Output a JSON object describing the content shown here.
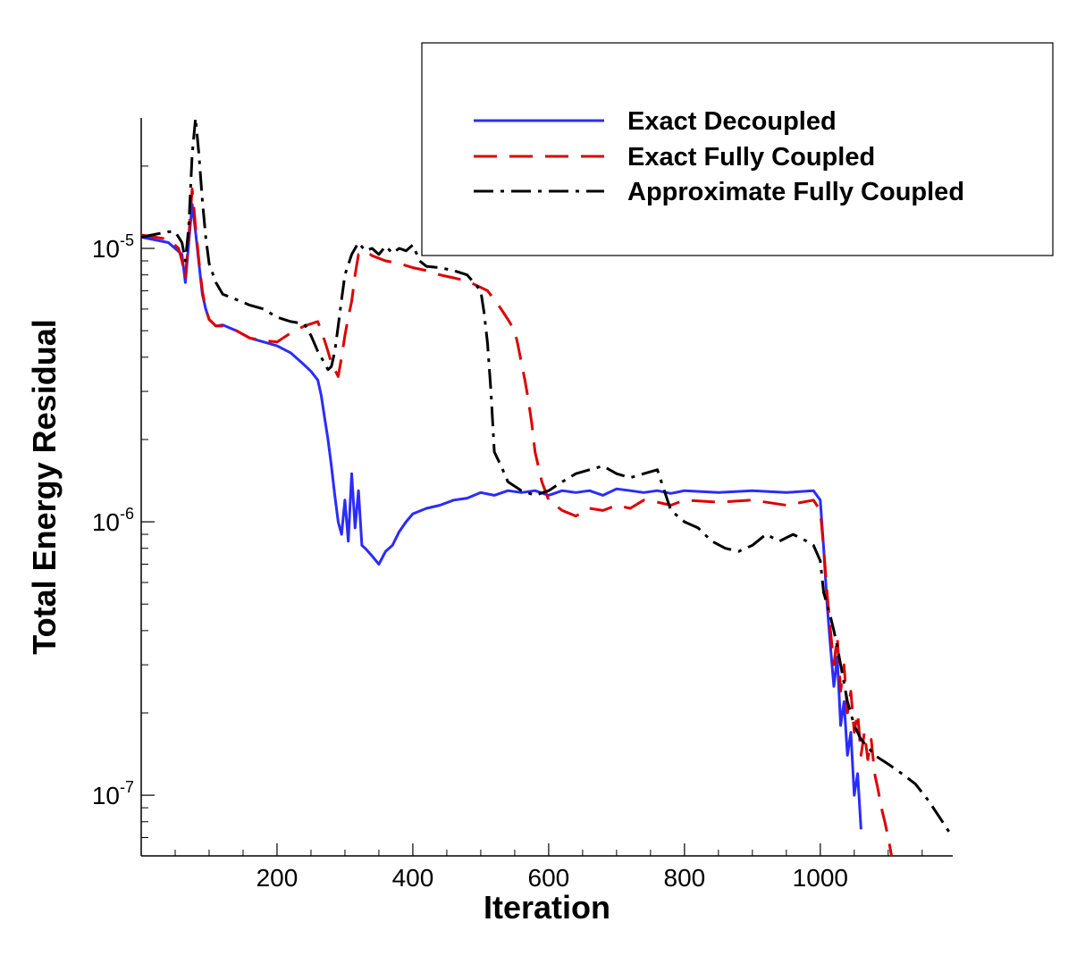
{
  "chart_data": {
    "type": "line",
    "xlabel": "Iteration",
    "ylabel": "Total Energy Residual",
    "xlim": [
      0,
      1195
    ],
    "ylim": [
      6e-08,
      3e-05
    ],
    "yscale": "log",
    "xticks": [
      200,
      400,
      600,
      800,
      1000
    ],
    "xtick_labels": [
      "200",
      "400",
      "600",
      "800",
      "1000"
    ],
    "yticks": [
      {
        "value": 1e-05,
        "base": "10",
        "exp": "-5"
      },
      {
        "value": 1e-06,
        "base": "10",
        "exp": "-6"
      },
      {
        "value": 1e-07,
        "base": "10",
        "exp": "-7"
      }
    ],
    "legend_position": "top-right",
    "series": [
      {
        "name": "Exact Decoupled",
        "color": "#2b2bff",
        "dash": "solid",
        "x": [
          0,
          40,
          60,
          65,
          70,
          75,
          80,
          85,
          90,
          95,
          100,
          110,
          120,
          140,
          160,
          180,
          200,
          220,
          240,
          250,
          260,
          265,
          270,
          275,
          280,
          285,
          290,
          295,
          300,
          305,
          310,
          315,
          320,
          325,
          330,
          340,
          350,
          360,
          370,
          380,
          390,
          400,
          420,
          440,
          460,
          480,
          500,
          520,
          540,
          560,
          580,
          600,
          620,
          640,
          660,
          680,
          700,
          720,
          740,
          760,
          780,
          800,
          850,
          900,
          950,
          990,
          1000,
          1005,
          1010,
          1015,
          1020,
          1025,
          1030,
          1035,
          1040,
          1045,
          1050,
          1055,
          1060
        ],
        "y": [
          1.1e-05,
          1.05e-05,
          9.5e-06,
          7.5e-06,
          1.05e-05,
          1.45e-05,
          1.15e-05,
          8.8e-06,
          6.8e-06,
          6e-06,
          5.5e-06,
          5.2e-06,
          5.25e-06,
          5e-06,
          4.7e-06,
          4.55e-06,
          4.4e-06,
          4.15e-06,
          3.75e-06,
          3.55e-06,
          3.3e-06,
          2.9e-06,
          2.4e-06,
          2e-06,
          1.6e-06,
          1.25e-06,
          1e-06,
          9e-07,
          1.2e-06,
          8.5e-07,
          1.5e-06,
          9.5e-07,
          1.3e-06,
          8.2e-07,
          8e-07,
          7.5e-07,
          7e-07,
          7.8e-07,
          8.2e-07,
          9.2e-07,
          1e-06,
          1.07e-06,
          1.12e-06,
          1.15e-06,
          1.2e-06,
          1.22e-06,
          1.28e-06,
          1.25e-06,
          1.3e-06,
          1.28e-06,
          1.3e-06,
          1.25e-06,
          1.3e-06,
          1.28e-06,
          1.3e-06,
          1.25e-06,
          1.32e-06,
          1.3e-06,
          1.28e-06,
          1.3e-06,
          1.27e-06,
          1.3e-06,
          1.28e-06,
          1.3e-06,
          1.28e-06,
          1.3e-06,
          1.2e-06,
          8e-07,
          5e-07,
          3.5e-07,
          2.5e-07,
          3.2e-07,
          1.8e-07,
          2.2e-07,
          1.4e-07,
          1.7e-07,
          1e-07,
          1.2e-07,
          7.5e-08
        ]
      },
      {
        "name": "Exact Fully Coupled",
        "color": "#dd0000",
        "dash": "dashed",
        "x": [
          0,
          40,
          55,
          60,
          65,
          70,
          75,
          80,
          85,
          90,
          95,
          100,
          110,
          120,
          140,
          160,
          180,
          200,
          220,
          240,
          250,
          260,
          270,
          275,
          280,
          285,
          290,
          295,
          300,
          305,
          310,
          315,
          320,
          330,
          340,
          360,
          380,
          400,
          420,
          440,
          460,
          480,
          500,
          510,
          520,
          530,
          540,
          550,
          555,
          560,
          565,
          570,
          575,
          580,
          590,
          600,
          620,
          640,
          660,
          680,
          700,
          720,
          740,
          760,
          780,
          800,
          850,
          900,
          950,
          990,
          1000,
          1005,
          1010,
          1015,
          1020,
          1025,
          1030,
          1035,
          1040,
          1045,
          1050,
          1055,
          1060,
          1065,
          1070,
          1075,
          1080,
          1085,
          1090,
          1095,
          1100,
          1105
        ],
        "y": [
          1.12e-05,
          1.08e-05,
          1e-05,
          9e-06,
          7.8e-06,
          1.1e-05,
          1.65e-05,
          1.2e-05,
          9e-06,
          7e-06,
          6e-06,
          5.5e-06,
          5.2e-06,
          5.2e-06,
          5e-06,
          4.7e-06,
          4.6e-06,
          4.55e-06,
          4.9e-06,
          5.2e-06,
          5.3e-06,
          5.4e-06,
          4.6e-06,
          4.2e-06,
          3.8e-06,
          3.6e-06,
          3.4e-06,
          4e-06,
          4.8e-06,
          5.6e-06,
          6.4e-06,
          8e-06,
          9.5e-06,
          9.8e-06,
          9.4e-06,
          9e-06,
          8.8e-06,
          8.5e-06,
          8.3e-06,
          8e-06,
          7.8e-06,
          7.6e-06,
          7.2e-06,
          7e-06,
          6.5e-06,
          6e-06,
          5.5e-06,
          5e-06,
          4.4e-06,
          3.8e-06,
          3.3e-06,
          2.8e-06,
          2.3e-06,
          1.8e-06,
          1.4e-06,
          1.2e-06,
          1.1e-06,
          1.05e-06,
          1.12e-06,
          1.1e-06,
          1.15e-06,
          1.12e-06,
          1.2e-06,
          1.18e-06,
          1.15e-06,
          1.2e-06,
          1.18e-06,
          1.2e-06,
          1.15e-06,
          1.2e-06,
          1.1e-06,
          8e-07,
          5.5e-07,
          4e-07,
          3e-07,
          3.8e-07,
          2.4e-07,
          3e-07,
          2e-07,
          2.4e-07,
          1.7e-07,
          2e-07,
          1.4e-07,
          1.7e-07,
          1.35e-07,
          1.6e-07,
          1.2e-07,
          1.05e-07,
          9e-08,
          8e-08,
          7e-08,
          6e-08
        ]
      },
      {
        "name": "Approximate Fully Coupled",
        "color": "#000000",
        "dash": "dashdot",
        "x": [
          0,
          40,
          50,
          55,
          60,
          65,
          70,
          75,
          80,
          85,
          90,
          95,
          100,
          110,
          120,
          140,
          160,
          180,
          200,
          220,
          240,
          250,
          260,
          270,
          275,
          280,
          285,
          290,
          295,
          300,
          310,
          320,
          330,
          340,
          350,
          360,
          370,
          380,
          390,
          400,
          410,
          420,
          440,
          460,
          480,
          500,
          505,
          510,
          515,
          520,
          530,
          540,
          560,
          580,
          600,
          620,
          640,
          660,
          680,
          700,
          720,
          740,
          760,
          780,
          800,
          820,
          840,
          860,
          880,
          900,
          920,
          940,
          960,
          980,
          990,
          1000,
          1005,
          1010,
          1015,
          1020,
          1025,
          1030,
          1040,
          1050,
          1060,
          1070,
          1080,
          1100,
          1120,
          1140,
          1160,
          1180,
          1195
        ],
        "y": [
          1.1e-05,
          1.15e-05,
          1.15e-05,
          1.1e-05,
          1.05e-05,
          9e-06,
          1.2e-05,
          2.2e-05,
          3e-05,
          2.2e-05,
          1.5e-05,
          1.1e-05,
          8.8e-06,
          7.5e-06,
          6.8e-06,
          6.5e-06,
          6.2e-06,
          6e-06,
          5.6e-06,
          5.4e-06,
          5.3e-06,
          4.8e-06,
          4.2e-06,
          3.8e-06,
          3.6e-06,
          3.7e-06,
          4.2e-06,
          5.2e-06,
          6.5e-06,
          8e-06,
          9.5e-06,
          1.05e-05,
          9.8e-06,
          1e-05,
          9.5e-06,
          1.02e-05,
          9.6e-06,
          1e-05,
          9.8e-06,
          1.03e-05,
          9e-06,
          8.6e-06,
          8.5e-06,
          8.3e-06,
          8e-06,
          7e-06,
          5.8e-06,
          4.5e-06,
          3e-06,
          1.8e-06,
          1.6e-06,
          1.4e-06,
          1.3e-06,
          1.25e-06,
          1.3e-06,
          1.4e-06,
          1.5e-06,
          1.55e-06,
          1.6e-06,
          1.5e-06,
          1.45e-06,
          1.5e-06,
          1.55e-06,
          1.1e-06,
          1e-06,
          9.5e-07,
          8.5e-07,
          8e-07,
          7.8e-07,
          8.2e-07,
          9e-07,
          8.5e-07,
          9e-07,
          8.5e-07,
          8.2e-07,
          7.2e-07,
          5.5e-07,
          5e-07,
          4.5e-07,
          4e-07,
          3.5e-07,
          3e-07,
          2.2e-07,
          1.8e-07,
          1.6e-07,
          1.5e-07,
          1.4e-07,
          1.3e-07,
          1.2e-07,
          1.1e-07,
          9.5e-08,
          8e-08,
          7e-08
        ]
      }
    ]
  }
}
